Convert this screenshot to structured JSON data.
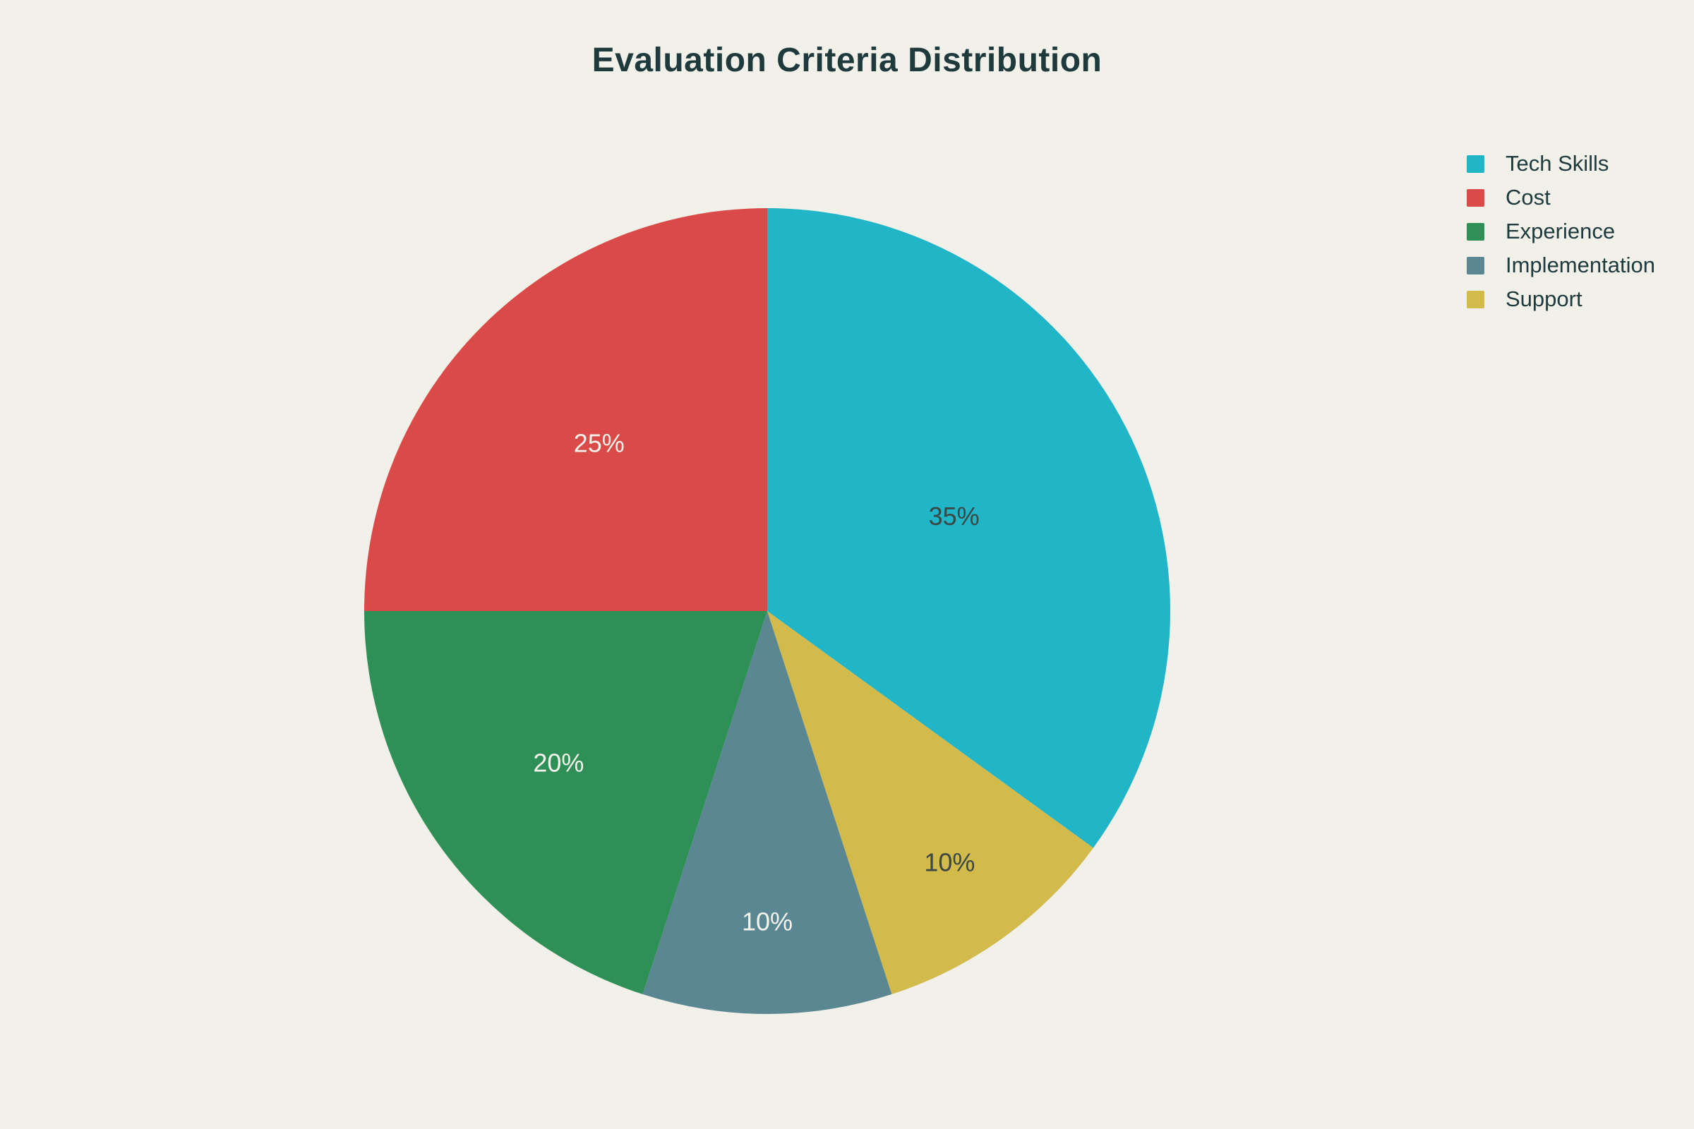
{
  "page": {
    "background_color": "#f1f0e9",
    "text_color": "#1e3a3d"
  },
  "chart_data": {
    "type": "pie",
    "title": "Evaluation Criteria Distribution",
    "categories": [
      "Tech Skills",
      "Cost",
      "Experience",
      "Implementation",
      "Support"
    ],
    "values": [
      35,
      25,
      20,
      10,
      10
    ],
    "unit": "percent",
    "slices": [
      {
        "label": "Tech Skills",
        "value": 35,
        "pct_label": "35%",
        "color": "#21b5c8",
        "text_color": "#3a4745",
        "label_r_frac": 0.52
      },
      {
        "label": "Cost",
        "value": 25,
        "pct_label": "25%",
        "color": "#d94a49",
        "text_color": "#f4f3ec",
        "label_r_frac": 0.59
      },
      {
        "label": "Experience",
        "value": 20,
        "pct_label": "20%",
        "color": "#2e9056",
        "text_color": "#f4f3ec",
        "label_r_frac": 0.64
      },
      {
        "label": "Implementation",
        "value": 10,
        "pct_label": "10%",
        "color": "#5b8793",
        "text_color": "#f4f3ec",
        "label_r_frac": 0.77
      },
      {
        "label": "Support",
        "value": 10,
        "pct_label": "10%",
        "color": "#d2ba4b",
        "text_color": "#3a4745",
        "label_r_frac": 0.77
      }
    ],
    "clockwise_order": [
      "Tech Skills",
      "Support",
      "Implementation",
      "Experience",
      "Cost"
    ],
    "start_angle_deg": 0,
    "direction": "clockwise",
    "grid": false,
    "legend": {
      "position": "top-right",
      "items": [
        "Tech Skills",
        "Cost",
        "Experience",
        "Implementation",
        "Support"
      ]
    }
  }
}
